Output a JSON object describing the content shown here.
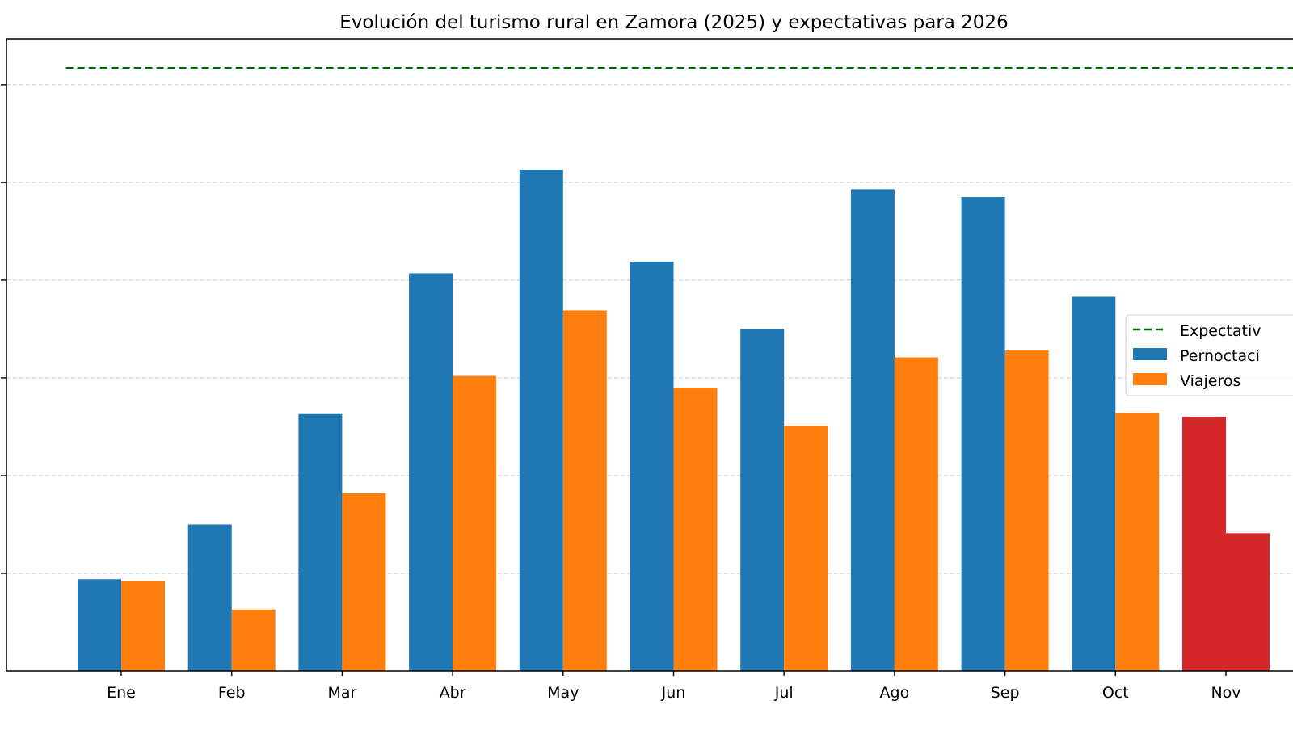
{
  "chart_data": {
    "type": "bar",
    "title": "Evolución del turismo rural en Zamora (2025) y expectativas para 2026",
    "xlabel": "",
    "ylabel": "",
    "categories": [
      "Ene",
      "Feb",
      "Mar",
      "Abr",
      "May",
      "Jun",
      "Jul",
      "Ago",
      "Sep",
      "Oct",
      "Nov"
    ],
    "series": [
      {
        "name": "Pernoctaci",
        "color": "#1f77b4",
        "values": [
          0.94,
          1.5,
          2.63,
          4.07,
          5.13,
          4.19,
          3.5,
          4.93,
          4.85,
          3.83,
          2.6
        ]
      },
      {
        "name": "Viajeros",
        "color": "#ff7f0e",
        "values": [
          0.92,
          0.63,
          1.82,
          3.02,
          3.69,
          2.9,
          2.51,
          3.21,
          3.28,
          2.64,
          1.41
        ]
      }
    ],
    "highlight": {
      "category": "Nov",
      "color": "#d62728"
    },
    "reference_line": {
      "name": "Expectativ",
      "value": 6.17,
      "color": "#006400",
      "style": "dashed"
    },
    "y_tick_labels_visible": false,
    "ylim": [
      0,
      6.47
    ],
    "grid": "y dashed",
    "legend_position": "right"
  }
}
